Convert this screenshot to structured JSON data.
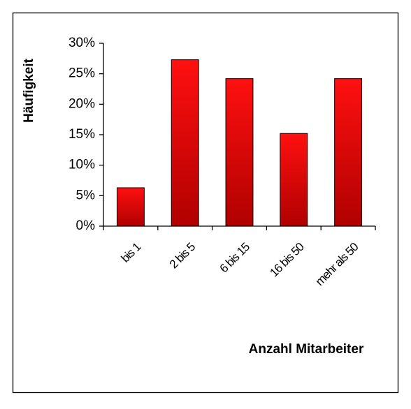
{
  "chart_data": {
    "type": "bar",
    "y_label": "Häufigkeit",
    "x_label": "Anzahl Mitarbeiter",
    "categories": [
      "bis 1",
      "2 bis 5",
      "6 bis 15",
      "16 bis 50",
      "mehr als 50"
    ],
    "values": [
      6.3,
      27.3,
      24.2,
      15.2,
      24.2
    ],
    "color": "#e00000",
    "ylim": [
      0,
      30
    ],
    "yticks": [
      {
        "value": 0,
        "label": "0%"
      },
      {
        "value": 5,
        "label": "5%"
      },
      {
        "value": 10,
        "label": "10%"
      },
      {
        "value": 15,
        "label": "15%"
      },
      {
        "value": 20,
        "label": "20%"
      },
      {
        "value": 25,
        "label": "25%"
      },
      {
        "value": 30,
        "label": "30%"
      }
    ],
    "grid": false
  }
}
